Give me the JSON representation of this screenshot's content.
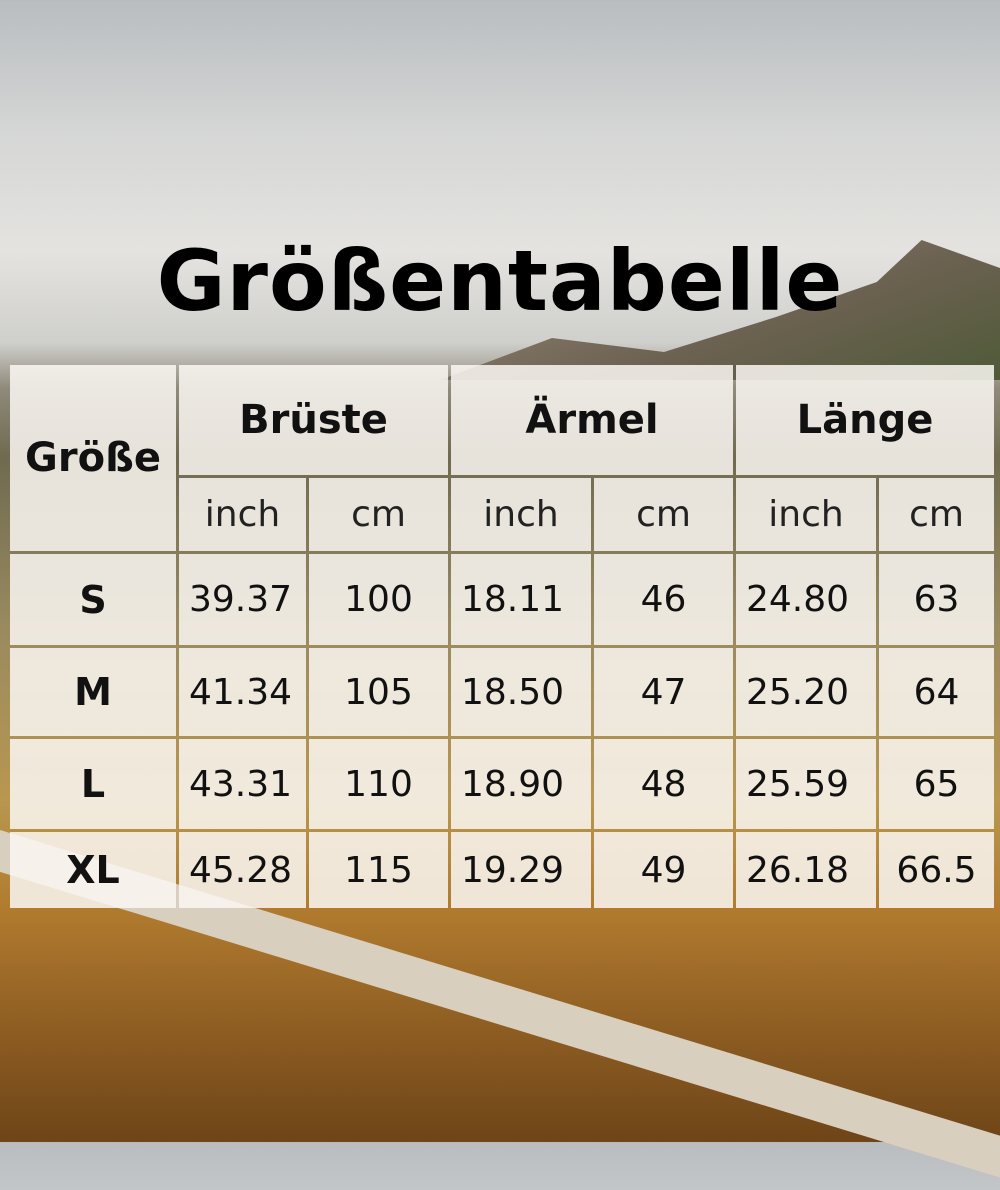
{
  "title": "Größentabelle",
  "table": {
    "size_header": "Größe",
    "groups": [
      "Brüste",
      "Ärmel",
      "Länge"
    ],
    "units": [
      "inch",
      "cm",
      "inch",
      "cm",
      "inch",
      "cm"
    ],
    "rows": [
      {
        "size": "S",
        "values": [
          "39.37",
          "100",
          "18.11",
          "46",
          "24.80",
          "63"
        ]
      },
      {
        "size": "M",
        "values": [
          "41.34",
          "105",
          "18.50",
          "47",
          "25.20",
          "64"
        ]
      },
      {
        "size": "L",
        "values": [
          "43.31",
          "110",
          "18.90",
          "48",
          "25.59",
          "65"
        ]
      },
      {
        "size": "XL",
        "values": [
          "45.28",
          "115",
          "19.29",
          "49",
          "26.18",
          "66.5"
        ]
      }
    ]
  }
}
